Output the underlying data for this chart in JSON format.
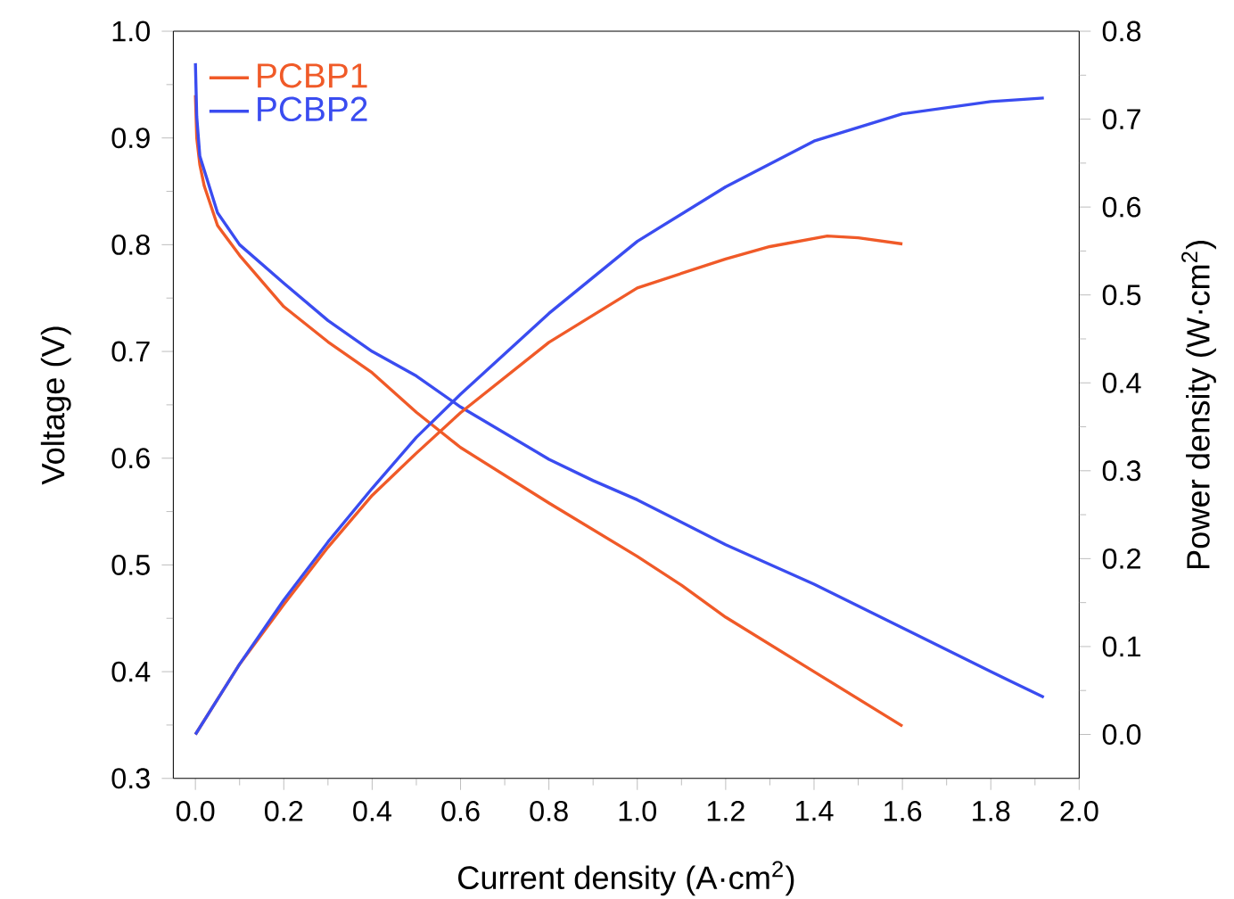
{
  "chart_data": {
    "type": "line",
    "xlabel": "Current density (A·cm$^{2}$)",
    "ylabel": "Voltage (V)",
    "y2label": "Power density (W·cm$^{2}$)",
    "xlim": [
      -0.05,
      2.0
    ],
    "ylim": [
      0.3,
      1.0
    ],
    "y2lim": [
      -0.05,
      0.8
    ],
    "xticks": [
      {
        "value": 0.0,
        "label": "0.0"
      },
      {
        "value": 0.1,
        "label": null
      },
      {
        "value": 0.2,
        "label": "0.2"
      },
      {
        "value": 0.3,
        "label": null
      },
      {
        "value": 0.4,
        "label": "0.4"
      },
      {
        "value": 0.5,
        "label": null
      },
      {
        "value": 0.6,
        "label": "0.6"
      },
      {
        "value": 0.7,
        "label": null
      },
      {
        "value": 0.8,
        "label": "0.8"
      },
      {
        "value": 0.9,
        "label": null
      },
      {
        "value": 1.0,
        "label": "1.0"
      },
      {
        "value": 1.1,
        "label": null
      },
      {
        "value": 1.2,
        "label": "1.2"
      },
      {
        "value": 1.3,
        "label": null
      },
      {
        "value": 1.4,
        "label": "1.4"
      },
      {
        "value": 1.5,
        "label": null
      },
      {
        "value": 1.6,
        "label": "1.6"
      },
      {
        "value": 1.7,
        "label": null
      },
      {
        "value": 1.8,
        "label": "1.8"
      },
      {
        "value": 1.9,
        "label": null
      },
      {
        "value": 2.0,
        "label": "2.0"
      }
    ],
    "yticks": [
      {
        "value": 0.3,
        "label": "0.3"
      },
      {
        "value": 0.35,
        "label": null
      },
      {
        "value": 0.4,
        "label": "0.4"
      },
      {
        "value": 0.45,
        "label": null
      },
      {
        "value": 0.5,
        "label": "0.5"
      },
      {
        "value": 0.55,
        "label": null
      },
      {
        "value": 0.6,
        "label": "0.6"
      },
      {
        "value": 0.65,
        "label": null
      },
      {
        "value": 0.7,
        "label": "0.7"
      },
      {
        "value": 0.75,
        "label": null
      },
      {
        "value": 0.8,
        "label": "0.8"
      },
      {
        "value": 0.85,
        "label": null
      },
      {
        "value": 0.9,
        "label": "0.9"
      },
      {
        "value": 0.95,
        "label": null
      },
      {
        "value": 1.0,
        "label": "1.0"
      }
    ],
    "y2ticks": [
      {
        "value": 0.0,
        "label": "0.0"
      },
      {
        "value": 0.05,
        "label": null
      },
      {
        "value": 0.1,
        "label": "0.1"
      },
      {
        "value": 0.15,
        "label": null
      },
      {
        "value": 0.2,
        "label": "0.2"
      },
      {
        "value": 0.25,
        "label": null
      },
      {
        "value": 0.3,
        "label": "0.3"
      },
      {
        "value": 0.35,
        "label": null
      },
      {
        "value": 0.4,
        "label": "0.4"
      },
      {
        "value": 0.45,
        "label": null
      },
      {
        "value": 0.5,
        "label": "0.5"
      },
      {
        "value": 0.55,
        "label": null
      },
      {
        "value": 0.6,
        "label": "0.6"
      },
      {
        "value": 0.65,
        "label": null
      },
      {
        "value": 0.7,
        "label": "0.7"
      },
      {
        "value": 0.75,
        "label": null
      },
      {
        "value": 0.8,
        "label": "0.8"
      }
    ],
    "legend": "top left",
    "series": [
      {
        "name": "PCBP1",
        "color": "#f05a28",
        "x": [
          0,
          0.003,
          0.01,
          0.02,
          0.05,
          0.1,
          0.2,
          0.3,
          0.4,
          0.5,
          0.6,
          0.8,
          1.0,
          1.1,
          1.2,
          1.4,
          1.6
        ],
        "values": [
          0.94,
          0.9,
          0.875,
          0.855,
          0.818,
          0.79,
          0.742,
          0.709,
          0.68,
          0.643,
          0.61,
          0.558,
          0.508,
          0.481,
          0.451,
          0.4,
          0.349
        ]
      },
      {
        "name": "PCBP2",
        "color": "#3a4cf0",
        "x": [
          0,
          0.003,
          0.01,
          0.05,
          0.1,
          0.2,
          0.3,
          0.4,
          0.5,
          0.6,
          0.8,
          0.9,
          1.0,
          1.1,
          1.2,
          1.4,
          1.6,
          1.8,
          1.92
        ],
        "values": [
          0.97,
          0.92,
          0.883,
          0.83,
          0.8,
          0.764,
          0.729,
          0.7,
          0.677,
          0.648,
          0.599,
          0.579,
          0.561,
          0.54,
          0.519,
          0.482,
          0.441,
          0.4,
          0.376
        ]
      },
      {
        "color": "#f05a28",
        "axis": "y2",
        "x": [
          0,
          0.1,
          0.2,
          0.3,
          0.4,
          0.5,
          0.6,
          0.8,
          1.0,
          1.2,
          1.3,
          1.43,
          1.5,
          1.6
        ],
        "values": [
          0,
          0.08,
          0.148,
          0.213,
          0.272,
          0.32,
          0.366,
          0.446,
          0.508,
          0.541,
          0.555,
          0.567,
          0.565,
          0.558
        ]
      },
      {
        "color": "#3a4cf0",
        "axis": "y2",
        "x": [
          0,
          0.1,
          0.2,
          0.3,
          0.4,
          0.5,
          0.6,
          0.8,
          1.0,
          1.2,
          1.4,
          1.6,
          1.8,
          1.92
        ],
        "values": [
          0,
          0.08,
          0.153,
          0.219,
          0.28,
          0.338,
          0.387,
          0.479,
          0.561,
          0.623,
          0.675,
          0.706,
          0.72,
          0.724
        ]
      }
    ]
  }
}
